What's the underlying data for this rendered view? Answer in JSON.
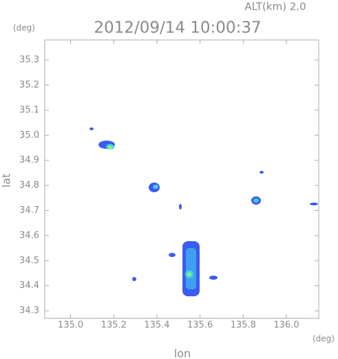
{
  "chart_data": {
    "type": "map",
    "title": "2012/09/14 10:00:37",
    "altitude_label": "ALT(km) 2.0",
    "y_unit": "(deg)",
    "x_unit": "(deg)",
    "xlabel": "lon",
    "ylabel": "lat",
    "xlim": [
      134.88,
      136.15
    ],
    "ylim": [
      34.27,
      35.38
    ],
    "xticks": [
      {
        "value": 135,
        "label": "135.0"
      },
      135.2,
      135.4,
      135.6,
      135.8,
      {
        "value": 136,
        "label": "136.0"
      }
    ],
    "yticks": [
      34.3,
      34.4,
      34.5,
      34.6,
      34.7,
      34.8,
      34.9,
      {
        "value": 35,
        "label": "35.0"
      },
      35.1,
      35.2,
      35.3
    ],
    "grid": false
  }
}
